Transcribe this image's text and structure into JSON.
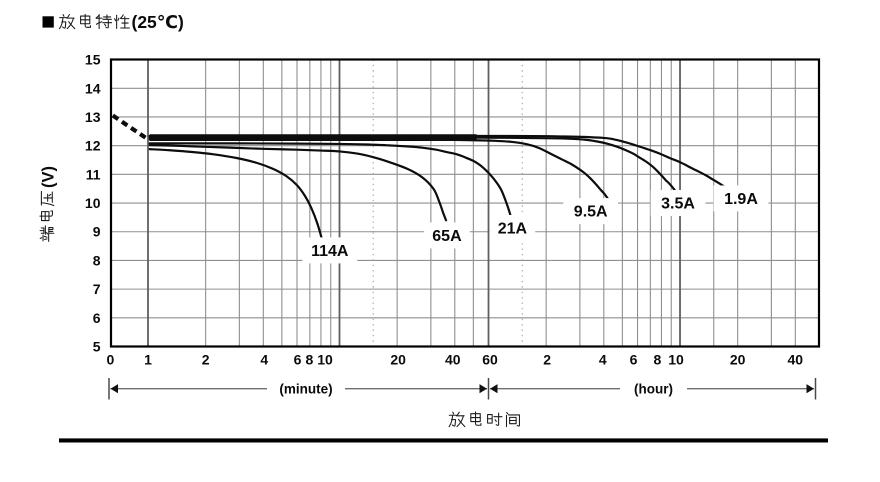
{
  "page": {
    "title": {
      "bullet": "■",
      "text": "放电特性(25℃)",
      "cjk_part": "放电特性",
      "latin_part": "(25℃)"
    }
  },
  "chart_data": {
    "type": "line",
    "title": "放电特性(25℃)",
    "xlabel": "放电时间",
    "ylabel": "端电压(V)",
    "ylabel_cjk": "端电压",
    "ylabel_unit": "(V)",
    "ylim": [
      5,
      15
    ],
    "grid": true,
    "y_ticks": [
      15,
      14,
      13,
      12,
      11,
      10,
      9,
      8,
      7,
      6,
      5
    ],
    "x_axis": {
      "scale": "log-time",
      "minute_ticks": [
        {
          "label": "0",
          "t": 0.6437,
          "dx": -1
        },
        {
          "label": "1",
          "t": 1,
          "dx": 0
        },
        {
          "label": "2",
          "t": 2,
          "dx": 0
        },
        {
          "label": "4",
          "t": 4,
          "dx": 1
        },
        {
          "label": "6",
          "t": 6,
          "dx": 0.5
        },
        {
          "label": "8",
          "t": 8,
          "dx": -11.5
        },
        {
          "label": "10",
          "t": 10,
          "dx": -14.5
        },
        {
          "label": "20",
          "t": 20,
          "dx": 1
        },
        {
          "label": "40",
          "t": 40,
          "dx": -2
        },
        {
          "label": "60",
          "t": 60,
          "dx": 1.5
        }
      ],
      "hour_ticks": [
        {
          "label": "2",
          "t": 120,
          "dx": 1
        },
        {
          "label": "4",
          "t": 240,
          "dx": -1
        },
        {
          "label": "6",
          "t": 360,
          "dx": -4
        },
        {
          "label": "8",
          "t": 480,
          "dx": -4
        },
        {
          "label": "10",
          "t": 600,
          "dx": -4
        },
        {
          "label": "20",
          "t": 1200,
          "dx": 0
        },
        {
          "label": "40",
          "t": 2400,
          "dx": 0
        }
      ],
      "grid_minor_t": [
        2,
        3,
        4,
        5,
        6,
        7,
        8,
        9,
        20,
        30,
        40,
        50,
        120,
        180,
        240,
        300,
        360,
        420,
        480,
        540,
        900,
        1200,
        1800,
        2400
      ],
      "grid_major_t": [
        1,
        10,
        60,
        600
      ],
      "grid_dotted_t": [
        15,
        90
      ],
      "segments": [
        {
          "label": "(minute)"
        },
        {
          "label": "(hour)"
        }
      ]
    },
    "initial_drop_line": {
      "style": "dashed",
      "from_tv": [
        0.655,
        13.05
      ],
      "to_tv": [
        0.97,
        12.28
      ]
    },
    "series": [
      {
        "name": "114A",
        "label_at": [
          8.9,
          8.35
        ],
        "points": [
          [
            1.02,
            11.88
          ],
          [
            1.3,
            11.84
          ],
          [
            1.7,
            11.78
          ],
          [
            2.2,
            11.7
          ],
          [
            2.9,
            11.57
          ],
          [
            3.7,
            11.4
          ],
          [
            4.5,
            11.19
          ],
          [
            5.3,
            10.93
          ],
          [
            6.0,
            10.62
          ],
          [
            6.6,
            10.25
          ],
          [
            7.1,
            9.85
          ],
          [
            7.65,
            9.3
          ],
          [
            8.2,
            8.6
          ],
          [
            8.6,
            8.0
          ]
        ]
      },
      {
        "name": "65A",
        "label_at": [
          36.4,
          8.87
        ],
        "points": [
          [
            1.02,
            12.02
          ],
          [
            1.5,
            11.99
          ],
          [
            2,
            11.96
          ],
          [
            3,
            11.92
          ],
          [
            4,
            11.89
          ],
          [
            6,
            11.86
          ],
          [
            8,
            11.83
          ],
          [
            10,
            11.8
          ],
          [
            12.5,
            11.72
          ],
          [
            15,
            11.6
          ],
          [
            17.6,
            11.46
          ],
          [
            22.5,
            11.2
          ],
          [
            27,
            10.9
          ],
          [
            31,
            10.49
          ],
          [
            33.2,
            10.04
          ],
          [
            34.9,
            9.63
          ],
          [
            36,
            9.4
          ]
        ]
      },
      {
        "name": "21A",
        "label_at": [
          80.0,
          9.13
        ],
        "points": [
          [
            1.02,
            12.08
          ],
          [
            3,
            12.08
          ],
          [
            6,
            12.07
          ],
          [
            10,
            12.06
          ],
          [
            14,
            12.04
          ],
          [
            18,
            12.01
          ],
          [
            23,
            11.97
          ],
          [
            27,
            11.93
          ],
          [
            32,
            11.86
          ],
          [
            36,
            11.78
          ],
          [
            41,
            11.7
          ],
          [
            45,
            11.6
          ],
          [
            50,
            11.47
          ],
          [
            54,
            11.33
          ],
          [
            58,
            11.15
          ],
          [
            62,
            10.95
          ],
          [
            66,
            10.72
          ],
          [
            70,
            10.45
          ],
          [
            74,
            10.05
          ],
          [
            77.5,
            9.65
          ],
          [
            79.5,
            9.35
          ]
        ]
      },
      {
        "name": "9.5A",
        "label_at": [
          205.0,
          9.72
        ],
        "points": [
          [
            1.02,
            12.22
          ],
          [
            10,
            12.22
          ],
          [
            30,
            12.21
          ],
          [
            50,
            12.19
          ],
          [
            65,
            12.17
          ],
          [
            80,
            12.13
          ],
          [
            95,
            12.05
          ],
          [
            110,
            11.92
          ],
          [
            130,
            11.68
          ],
          [
            145,
            11.52
          ],
          [
            161,
            11.37
          ],
          [
            175,
            11.22
          ],
          [
            190,
            11.05
          ],
          [
            205,
            10.85
          ],
          [
            218,
            10.66
          ],
          [
            232,
            10.45
          ],
          [
            243,
            10.3
          ],
          [
            252,
            10.15
          ]
        ]
      },
      {
        "name": "3.5A",
        "label_at": [
          586.0,
          10.0
        ],
        "points": [
          [
            1.02,
            12.29
          ],
          [
            30,
            12.29
          ],
          [
            90,
            12.27
          ],
          [
            150,
            12.25
          ],
          [
            190,
            12.21
          ],
          [
            220,
            12.15
          ],
          [
            250,
            12.07
          ],
          [
            280,
            11.97
          ],
          [
            311,
            11.85
          ],
          [
            340,
            11.73
          ],
          [
            366,
            11.6
          ],
          [
            400,
            11.44
          ],
          [
            430,
            11.28
          ],
          [
            456,
            11.12
          ],
          [
            482,
            10.95
          ],
          [
            505,
            10.8
          ],
          [
            524,
            10.7
          ],
          [
            545,
            10.57
          ],
          [
            563,
            10.45
          ]
        ]
      },
      {
        "name": "1.9A",
        "label_at": [
          1249.0,
          10.16
        ],
        "points": [
          [
            1.02,
            12.34
          ],
          [
            60,
            12.34
          ],
          [
            150,
            12.32
          ],
          [
            240,
            12.27
          ],
          [
            280,
            12.2
          ],
          [
            311,
            12.12
          ],
          [
            345,
            12.03
          ],
          [
            380,
            11.94
          ],
          [
            430,
            11.82
          ],
          [
            475,
            11.71
          ],
          [
            530,
            11.57
          ],
          [
            593,
            11.44
          ],
          [
            650,
            11.31
          ],
          [
            698,
            11.2
          ],
          [
            760,
            11.08
          ],
          [
            822,
            10.96
          ],
          [
            870,
            10.86
          ],
          [
            917,
            10.77
          ],
          [
            975,
            10.66
          ],
          [
            1025,
            10.57
          ]
        ]
      }
    ],
    "colors": {
      "curve": "#0d0d0d",
      "grid": "#8f8f8f",
      "grid_major": "#5f5f5f",
      "border": "#000000",
      "text": "#0b0b0b"
    }
  }
}
